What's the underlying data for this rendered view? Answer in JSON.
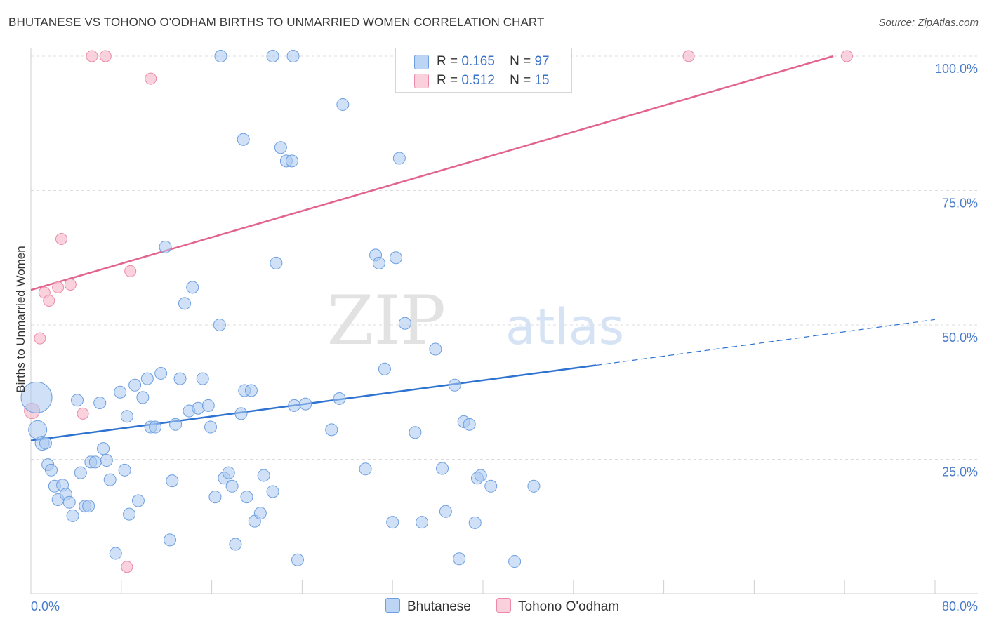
{
  "title": "BHUTANESE VS TOHONO O'ODHAM BIRTHS TO UNMARRIED WOMEN CORRELATION CHART",
  "source": "Source: ZipAtlas.com",
  "watermark": {
    "zip": "ZIP",
    "atlas": "atlas"
  },
  "legend": {
    "rows": [
      {
        "r_label": "R =",
        "r_value": "0.165",
        "n_label": "N =",
        "n_value": "97"
      },
      {
        "r_label": "R =",
        "r_value": "0.512",
        "n_label": "N =",
        "n_value": "15"
      }
    ]
  },
  "bottom_legend": {
    "series1": "Bhutanese",
    "series2": "Tohono O'odham"
  },
  "colors": {
    "blue_fill": "#a9c8f0",
    "blue_stroke": "#6d9fe0",
    "blue_line": "#2f73d1",
    "pink_fill": "#f7c3d2",
    "pink_stroke": "#eb8aa9",
    "pink_line": "#e2648d",
    "tick_text": "#4a7cc9",
    "grid": "#dcdcdc"
  },
  "chart_data": {
    "type": "scatter",
    "title": "BHUTANESE VS TOHONO O'ODHAM BIRTHS TO UNMARRIED WOMEN CORRELATION CHART",
    "xlabel": "",
    "ylabel": "Births to Unmarried Women",
    "xlim": [
      0,
      80
    ],
    "ylim": [
      0,
      103
    ],
    "x_tick_labels": [
      "0.0%",
      "80.0%"
    ],
    "y_ticks": [
      25,
      50,
      75,
      100
    ],
    "y_tick_labels": [
      "25.0%",
      "50.0%",
      "75.0%",
      "100.0%"
    ],
    "series": [
      {
        "name": "Bhutanese",
        "r": 0.165,
        "n": 97,
        "trend": {
          "x0": 0,
          "y0": 28.5,
          "x1": 50,
          "y1": 42.5,
          "dash_x1": 80,
          "dash_y1": 51
        },
        "points": [
          [
            0.5,
            36.5
          ],
          [
            0.6,
            30.5
          ],
          [
            1.0,
            28
          ],
          [
            1.3,
            28
          ],
          [
            1.5,
            24
          ],
          [
            1.8,
            23
          ],
          [
            2.1,
            20
          ],
          [
            2.4,
            17.5
          ],
          [
            2.8,
            20.2
          ],
          [
            3.1,
            18.5
          ],
          [
            3.4,
            17
          ],
          [
            3.7,
            14.5
          ],
          [
            4.1,
            36
          ],
          [
            4.4,
            22.5
          ],
          [
            4.8,
            16.3
          ],
          [
            5.1,
            16.3
          ],
          [
            5.3,
            24.5
          ],
          [
            5.7,
            24.5
          ],
          [
            6.1,
            35.5
          ],
          [
            6.4,
            27
          ],
          [
            6.7,
            24.8
          ],
          [
            7.0,
            21.2
          ],
          [
            7.5,
            7.5
          ],
          [
            7.9,
            37.5
          ],
          [
            8.3,
            23
          ],
          [
            8.5,
            33
          ],
          [
            8.7,
            14.8
          ],
          [
            9.2,
            38.8
          ],
          [
            9.5,
            17.3
          ],
          [
            9.9,
            36.5
          ],
          [
            10.3,
            40
          ],
          [
            10.6,
            31
          ],
          [
            11.0,
            31
          ],
          [
            11.5,
            41
          ],
          [
            11.9,
            64.5
          ],
          [
            12.3,
            10
          ],
          [
            12.5,
            21
          ],
          [
            12.8,
            31.5
          ],
          [
            13.2,
            40
          ],
          [
            13.6,
            54
          ],
          [
            14.0,
            34
          ],
          [
            14.3,
            57
          ],
          [
            14.8,
            34.5
          ],
          [
            15.2,
            40
          ],
          [
            15.7,
            35
          ],
          [
            15.9,
            31
          ],
          [
            16.3,
            18
          ],
          [
            16.7,
            50
          ],
          [
            17.1,
            21.5
          ],
          [
            17.5,
            22.5
          ],
          [
            17.8,
            20
          ],
          [
            18.1,
            9.2
          ],
          [
            18.6,
            33.5
          ],
          [
            18.9,
            37.8
          ],
          [
            19.1,
            18
          ],
          [
            19.5,
            37.8
          ],
          [
            19.8,
            13.5
          ],
          [
            20.3,
            15
          ],
          [
            20.6,
            22
          ],
          [
            21.4,
            19
          ],
          [
            21.7,
            61.5
          ],
          [
            22.1,
            83
          ],
          [
            22.6,
            80.5
          ],
          [
            23.1,
            80.5
          ],
          [
            23.3,
            35
          ],
          [
            23.6,
            6.3
          ],
          [
            24.3,
            35.3
          ],
          [
            16.8,
            100
          ],
          [
            21.4,
            100
          ],
          [
            23.2,
            100
          ],
          [
            18.8,
            84.5
          ],
          [
            26.6,
            30.5
          ],
          [
            27.3,
            36.3
          ],
          [
            27.6,
            91
          ],
          [
            29.6,
            23.2
          ],
          [
            30.5,
            63
          ],
          [
            30.8,
            61.5
          ],
          [
            31.3,
            41.8
          ],
          [
            32.0,
            13.3
          ],
          [
            32.3,
            62.5
          ],
          [
            32.6,
            81
          ],
          [
            33.1,
            50.3
          ],
          [
            34.0,
            30
          ],
          [
            34.6,
            13.3
          ],
          [
            35.8,
            45.5
          ],
          [
            36.4,
            23.3
          ],
          [
            36.7,
            15.3
          ],
          [
            37.5,
            38.8
          ],
          [
            37.9,
            6.5
          ],
          [
            38.3,
            32
          ],
          [
            38.8,
            31.5
          ],
          [
            39.3,
            13.2
          ],
          [
            39.5,
            21.5
          ],
          [
            39.8,
            22
          ],
          [
            40.7,
            20
          ],
          [
            42.8,
            6
          ],
          [
            44.5,
            20
          ]
        ]
      },
      {
        "name": "Tohono O'odham",
        "r": 0.512,
        "n": 15,
        "trend": {
          "x0": 0,
          "y0": 56.5,
          "x1": 71,
          "y1": 100
        },
        "points": [
          [
            0.1,
            34
          ],
          [
            0.8,
            47.5
          ],
          [
            1.2,
            56
          ],
          [
            1.6,
            54.5
          ],
          [
            2.4,
            57
          ],
          [
            2.7,
            66
          ],
          [
            3.5,
            57.5
          ],
          [
            4.6,
            33.5
          ],
          [
            5.4,
            100
          ],
          [
            6.6,
            100
          ],
          [
            8.5,
            5
          ],
          [
            8.8,
            60
          ],
          [
            10.6,
            95.8
          ],
          [
            58.2,
            100
          ],
          [
            72.2,
            100
          ]
        ]
      }
    ]
  }
}
